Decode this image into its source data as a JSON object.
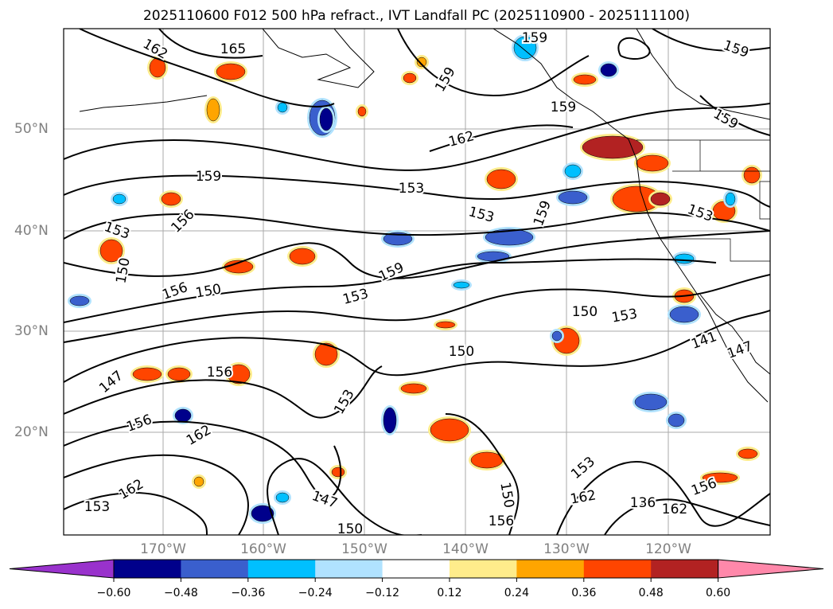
{
  "title": "2025110600 F012 500 hPa refract., IVT Landfall PC (2025110900 - 2025111100)",
  "axes": {
    "lat_labels": [
      "50°N",
      "40°N",
      "30°N",
      "20°N"
    ],
    "lon_labels": [
      "170°W",
      "160°W",
      "150°W",
      "140°W",
      "130°W",
      "120°W"
    ],
    "lon_range": [
      -180,
      -110
    ],
    "lat_range": [
      10,
      60
    ]
  },
  "contour_labels": [
    "162",
    "165",
    "159",
    "159",
    "159",
    "159",
    "159",
    "162",
    "159",
    "153",
    "153",
    "159",
    "153",
    "156",
    "153",
    "150",
    "159",
    "156",
    "150",
    "153",
    "150",
    "153",
    "141",
    "147",
    "150",
    "147",
    "156",
    "153",
    "156",
    "162",
    "153",
    "150",
    "162",
    "162",
    "156",
    "136",
    "147",
    "153",
    "162",
    "150",
    "156"
  ],
  "colorbar": {
    "ticks": [
      "−0.60",
      "−0.48",
      "−0.36",
      "−0.24",
      "−0.12",
      "0.12",
      "0.24",
      "0.36",
      "0.48",
      "0.60"
    ],
    "colors": [
      "#9932CC",
      "#00008B",
      "#3A5FCD",
      "#00BFFF",
      "#B0E2FF",
      "#FFFFFF",
      "#FFEC8B",
      "#FFA500",
      "#FF4500",
      "#B22222",
      "#FF88AA"
    ]
  }
}
